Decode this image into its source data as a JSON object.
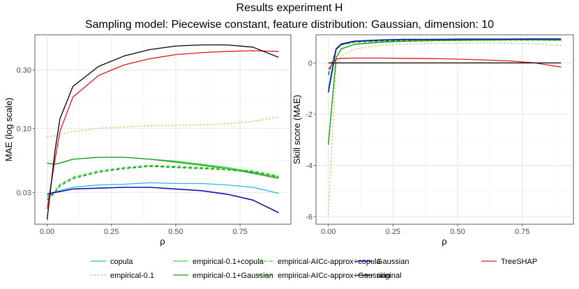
{
  "title": "Results experiment H",
  "subtitle": "Sampling model: Piecewise constant, feature distribution: Gaussian, dimension: 10",
  "chart_data": [
    {
      "type": "line",
      "xlabel": "ρ",
      "ylabel": "MAE (log scale)",
      "log_y": true,
      "xlim": [
        -0.045,
        0.945
      ],
      "ylim": [
        0.0165,
        0.58
      ],
      "x_ticks": [
        0.0,
        0.25,
        0.5,
        0.75
      ],
      "x_tick_labels": [
        "0.00",
        "0.25",
        "0.50",
        "0.75"
      ],
      "y_ticks": [
        0.03,
        0.1,
        0.3
      ],
      "y_tick_labels": [
        "0.03",
        "0.10",
        "0.30"
      ],
      "x": [
        0.0,
        0.03,
        0.05,
        0.1,
        0.2,
        0.3,
        0.4,
        0.5,
        0.6,
        0.7,
        0.8,
        0.9
      ],
      "grid": true,
      "series": [
        {
          "name": "copula",
          "values": [
            0.028,
            0.03,
            0.031,
            0.033,
            0.0345,
            0.035,
            0.036,
            0.0355,
            0.0355,
            0.0345,
            0.033,
            0.0295
          ]
        },
        {
          "name": "empirical-0.1",
          "values": [
            0.085,
            0.087,
            0.09,
            0.094,
            0.1,
            0.103,
            0.105,
            0.106,
            0.107,
            0.109,
            0.114,
            0.124
          ]
        },
        {
          "name": "empirical-0.1+copula",
          "values": [
            0.052,
            0.051,
            0.052,
            0.056,
            0.058,
            0.058,
            0.056,
            0.054,
            0.051,
            0.048,
            0.044,
            0.04
          ]
        },
        {
          "name": "empirical-0.1+Gaussian",
          "values": [
            0.052,
            0.051,
            0.052,
            0.056,
            0.058,
            0.058,
            0.056,
            0.053,
            0.05,
            0.047,
            0.043,
            0.039
          ]
        },
        {
          "name": "empirical-AICc-approx+copula",
          "values": [
            0.027,
            0.031,
            0.035,
            0.04,
            0.045,
            0.048,
            0.05,
            0.049,
            0.048,
            0.047,
            0.045,
            0.041
          ]
        },
        {
          "name": "empirical-AICc-approx+Gaussian",
          "values": [
            0.026,
            0.03,
            0.034,
            0.039,
            0.044,
            0.047,
            0.049,
            0.048,
            0.047,
            0.046,
            0.044,
            0.04
          ]
        },
        {
          "name": "Gaussian",
          "values": [
            0.029,
            0.03,
            0.0305,
            0.032,
            0.0325,
            0.033,
            0.033,
            0.032,
            0.031,
            0.029,
            0.026,
            0.0205
          ]
        },
        {
          "name": "TreeSHAP",
          "values": [
            0.022,
            0.055,
            0.095,
            0.18,
            0.27,
            0.33,
            0.37,
            0.4,
            0.415,
            0.425,
            0.43,
            0.425
          ]
        },
        {
          "name": "original",
          "values": [
            0.018,
            0.065,
            0.12,
            0.22,
            0.32,
            0.39,
            0.44,
            0.47,
            0.48,
            0.48,
            0.46,
            0.38
          ]
        }
      ]
    },
    {
      "type": "line",
      "xlabel": "ρ",
      "ylabel": "Skill score (MAE)",
      "xlim": [
        -0.045,
        0.945
      ],
      "ylim": [
        -6.3,
        1.1
      ],
      "x_ticks": [
        0.0,
        0.25,
        0.5,
        0.75
      ],
      "x_tick_labels": [
        "0.00",
        "0.25",
        "0.50",
        "0.75"
      ],
      "y_ticks": [
        -6,
        -4,
        -2,
        0
      ],
      "y_tick_labels": [
        "-6",
        "-4",
        "-2",
        "0"
      ],
      "x": [
        0.0,
        0.03,
        0.05,
        0.1,
        0.2,
        0.3,
        0.4,
        0.5,
        0.6,
        0.7,
        0.8,
        0.9
      ],
      "grid": true,
      "series": [
        {
          "name": "copula",
          "values": [
            -1.0,
            0.55,
            0.72,
            0.84,
            0.89,
            0.91,
            0.92,
            0.92,
            0.93,
            0.93,
            0.93,
            0.92
          ]
        },
        {
          "name": "empirical-0.1",
          "values": [
            -5.9,
            -0.1,
            0.25,
            0.55,
            0.69,
            0.74,
            0.76,
            0.77,
            0.78,
            0.77,
            0.75,
            0.68
          ]
        },
        {
          "name": "empirical-0.1+copula",
          "values": [
            -3.15,
            0.2,
            0.55,
            0.73,
            0.81,
            0.85,
            0.87,
            0.88,
            0.89,
            0.9,
            0.9,
            0.9
          ]
        },
        {
          "name": "empirical-0.1+Gaussian",
          "values": [
            -3.2,
            0.2,
            0.55,
            0.73,
            0.81,
            0.85,
            0.87,
            0.88,
            0.89,
            0.9,
            0.9,
            0.89
          ]
        },
        {
          "name": "empirical-AICc-approx+copula",
          "values": [
            -0.5,
            0.52,
            0.7,
            0.81,
            0.85,
            0.87,
            0.88,
            0.89,
            0.9,
            0.9,
            0.9,
            0.89
          ]
        },
        {
          "name": "empirical-AICc-approx+Gaussian",
          "values": [
            -0.45,
            0.53,
            0.71,
            0.82,
            0.86,
            0.88,
            0.89,
            0.9,
            0.9,
            0.9,
            0.9,
            0.89
          ]
        },
        {
          "name": "Gaussian",
          "values": [
            -1.15,
            0.55,
            0.74,
            0.85,
            0.9,
            0.92,
            0.92,
            0.93,
            0.93,
            0.93,
            0.94,
            0.94
          ]
        },
        {
          "name": "TreeSHAP",
          "values": [
            -0.25,
            0.15,
            0.18,
            0.19,
            0.19,
            0.18,
            0.17,
            0.15,
            0.12,
            0.08,
            0.0,
            -0.16
          ]
        },
        {
          "name": "original",
          "values": [
            0,
            0,
            0,
            0,
            0,
            0,
            0,
            0,
            0,
            0,
            0,
            0
          ]
        }
      ]
    }
  ],
  "styles": {
    "copula": {
      "color": "#29b6e8",
      "dash": "",
      "width": 1.3
    },
    "empirical-0.1": {
      "color": "#f2a83b",
      "dash": "2,3",
      "width": 1.3
    },
    "empirical-0.1+copula": {
      "color": "#3ad63a",
      "dash": "",
      "width": 1.3
    },
    "empirical-0.1+Gaussian": {
      "color": "#1c9a1c",
      "dash": "",
      "width": 1.3
    },
    "empirical-AICc-approx+copula": {
      "color": "#3ad63a",
      "dash": "5,3",
      "width": 1.3
    },
    "empirical-AICc-approx+Gaussian": {
      "color": "#1c9a1c",
      "dash": "5,3",
      "width": 1.6
    },
    "Gaussian": {
      "color": "#1010a8",
      "dash": "",
      "width": 1.6
    },
    "TreeSHAP": {
      "color": "#e8141e",
      "dash": "",
      "width": 1.3
    },
    "original": {
      "color": "#000000",
      "dash": "",
      "width": 1.3
    }
  },
  "legend": [
    [
      "copula",
      "empirical-0.1",
      "empirical-0.1+copula",
      "empirical-0.1+Gaussian",
      "empirical-AICc-approx+copula",
      "empirical-AICc-approx+Gaussian",
      "Gaussian",
      "TreeSHAP",
      "original"
    ]
  ]
}
